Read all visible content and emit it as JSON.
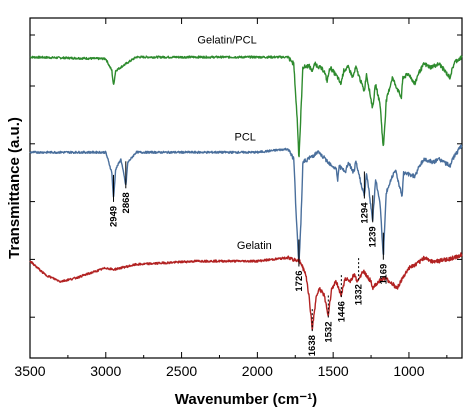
{
  "chart_data": {
    "type": "line",
    "xlabel": "Wavenumber (cm⁻¹)",
    "ylabel": "Transmittance (a.u.)",
    "x_ticks": [
      "3500",
      "3000",
      "2500",
      "2000",
      "1500",
      "1000"
    ],
    "xlim": [
      3500,
      650
    ],
    "x_reversed": true,
    "series": [
      {
        "name": "Gelatin/PCL",
        "color": "#2e8b2e",
        "baseline": 0.885,
        "points": [
          [
            3500,
            0
          ],
          [
            3000,
            -0.005
          ],
          [
            2960,
            -0.04
          ],
          [
            2949,
            -0.085
          ],
          [
            2935,
            -0.04
          ],
          [
            2868,
            -0.02
          ],
          [
            2800,
            0
          ],
          [
            2400,
            0
          ],
          [
            2000,
            0
          ],
          [
            1800,
            0
          ],
          [
            1760,
            -0.02
          ],
          [
            1735,
            -0.2
          ],
          [
            1726,
            -0.3
          ],
          [
            1715,
            -0.19
          ],
          [
            1700,
            -0.03
          ],
          [
            1660,
            -0.025
          ],
          [
            1640,
            -0.04
          ],
          [
            1620,
            -0.02
          ],
          [
            1560,
            -0.04
          ],
          [
            1540,
            -0.07
          ],
          [
            1520,
            -0.03
          ],
          [
            1470,
            -0.06
          ],
          [
            1450,
            -0.08
          ],
          [
            1430,
            -0.04
          ],
          [
            1400,
            -0.03
          ],
          [
            1370,
            -0.06
          ],
          [
            1350,
            -0.03
          ],
          [
            1295,
            -0.1
          ],
          [
            1280,
            -0.05
          ],
          [
            1240,
            -0.15
          ],
          [
            1220,
            -0.08
          ],
          [
            1190,
            -0.14
          ],
          [
            1169,
            -0.27
          ],
          [
            1150,
            -0.13
          ],
          [
            1110,
            -0.06
          ],
          [
            1090,
            -0.08
          ],
          [
            1050,
            -0.12
          ],
          [
            1040,
            -0.06
          ],
          [
            1000,
            -0.05
          ],
          [
            960,
            -0.08
          ],
          [
            940,
            -0.05
          ],
          [
            900,
            -0.02
          ],
          [
            860,
            -0.03
          ],
          [
            800,
            -0.02
          ],
          [
            730,
            -0.06
          ],
          [
            700,
            -0.015
          ],
          [
            650,
            0
          ]
        ]
      },
      {
        "name": "PCL",
        "color": "#4a6f9c",
        "baseline": 0.605,
        "points": [
          [
            3500,
            0
          ],
          [
            3000,
            0
          ],
          [
            2960,
            -0.06
          ],
          [
            2949,
            -0.14
          ],
          [
            2935,
            -0.05
          ],
          [
            2900,
            -0.02
          ],
          [
            2875,
            -0.08
          ],
          [
            2868,
            -0.1
          ],
          [
            2855,
            -0.03
          ],
          [
            2800,
            0
          ],
          [
            2400,
            0
          ],
          [
            2000,
            0
          ],
          [
            1800,
            0.01
          ],
          [
            1760,
            -0.02
          ],
          [
            1740,
            -0.22
          ],
          [
            1726,
            -0.33
          ],
          [
            1712,
            -0.2
          ],
          [
            1700,
            -0.03
          ],
          [
            1600,
            0
          ],
          [
            1480,
            -0.05
          ],
          [
            1470,
            -0.08
          ],
          [
            1460,
            -0.04
          ],
          [
            1420,
            -0.06
          ],
          [
            1400,
            -0.03
          ],
          [
            1365,
            -0.06
          ],
          [
            1350,
            -0.03
          ],
          [
            1294,
            -0.13
          ],
          [
            1280,
            -0.06
          ],
          [
            1239,
            -0.2
          ],
          [
            1220,
            -0.08
          ],
          [
            1190,
            -0.15
          ],
          [
            1169,
            -0.31
          ],
          [
            1150,
            -0.12
          ],
          [
            1110,
            -0.07
          ],
          [
            1090,
            -0.05
          ],
          [
            1045,
            -0.13
          ],
          [
            1035,
            -0.06
          ],
          [
            960,
            -0.07
          ],
          [
            930,
            -0.04
          ],
          [
            900,
            -0.02
          ],
          [
            840,
            -0.03
          ],
          [
            800,
            -0.02
          ],
          [
            730,
            -0.04
          ],
          [
            700,
            -0.01
          ],
          [
            650,
            0.02
          ]
        ]
      },
      {
        "name": "Gelatin",
        "color": "#b22222",
        "baseline": 0.285,
        "points": [
          [
            3500,
            0
          ],
          [
            3450,
            -0.02
          ],
          [
            3400,
            -0.04
          ],
          [
            3300,
            -0.06
          ],
          [
            3200,
            -0.05
          ],
          [
            3100,
            -0.035
          ],
          [
            3000,
            -0.02
          ],
          [
            2950,
            -0.025
          ],
          [
            2900,
            -0.02
          ],
          [
            2800,
            -0.01
          ],
          [
            2600,
            -0.005
          ],
          [
            2400,
            0
          ],
          [
            2000,
            0
          ],
          [
            1800,
            0.01
          ],
          [
            1720,
            0
          ],
          [
            1680,
            -0.04
          ],
          [
            1660,
            -0.1
          ],
          [
            1638,
            -0.2
          ],
          [
            1610,
            -0.1
          ],
          [
            1590,
            -0.08
          ],
          [
            1560,
            -0.1
          ],
          [
            1532,
            -0.16
          ],
          [
            1510,
            -0.08
          ],
          [
            1480,
            -0.06
          ],
          [
            1455,
            -0.09
          ],
          [
            1446,
            -0.1
          ],
          [
            1420,
            -0.05
          ],
          [
            1390,
            -0.06
          ],
          [
            1360,
            -0.04
          ],
          [
            1340,
            -0.06
          ],
          [
            1332,
            -0.05
          ],
          [
            1300,
            -0.03
          ],
          [
            1250,
            -0.06
          ],
          [
            1240,
            -0.08
          ],
          [
            1200,
            -0.06
          ],
          [
            1160,
            -0.05
          ],
          [
            1100,
            -0.07
          ],
          [
            1080,
            -0.08
          ],
          [
            1040,
            -0.05
          ],
          [
            1000,
            -0.02
          ],
          [
            950,
            -0.01
          ],
          [
            900,
            0.01
          ],
          [
            850,
            0
          ],
          [
            800,
            0
          ],
          [
            700,
            0.01
          ],
          [
            650,
            0.02
          ]
        ]
      }
    ],
    "series_labels": [
      {
        "text": "Gelatin/PCL",
        "x": 2200,
        "series": 0,
        "dy": 0.04
      },
      {
        "text": "PCL",
        "x": 2080,
        "series": 1,
        "dy": 0.035
      },
      {
        "text": "Gelatin",
        "x": 2020,
        "series": 2,
        "dy": 0.035
      }
    ],
    "peak_labels": [
      {
        "text": "2949",
        "x": 2949,
        "series": 1,
        "line": "solid"
      },
      {
        "text": "2868",
        "x": 2868,
        "series": 1,
        "line": "solid"
      },
      {
        "text": "1726",
        "x": 1726,
        "series": 1,
        "line": "solid"
      },
      {
        "text": "1294",
        "x": 1294,
        "series": 1,
        "line": "solid"
      },
      {
        "text": "1239",
        "x": 1239,
        "series": 1,
        "line": "solid"
      },
      {
        "text": "1169",
        "x": 1169,
        "series": 1,
        "line": "solid"
      },
      {
        "text": "1638",
        "x": 1638,
        "series": 2,
        "line": "dashed"
      },
      {
        "text": "1532",
        "x": 1532,
        "series": 2,
        "line": "dashed"
      },
      {
        "text": "1446",
        "x": 1446,
        "series": 2,
        "line": "dashed"
      },
      {
        "text": "1332",
        "x": 1332,
        "series": 2,
        "line": "dashed"
      }
    ]
  }
}
